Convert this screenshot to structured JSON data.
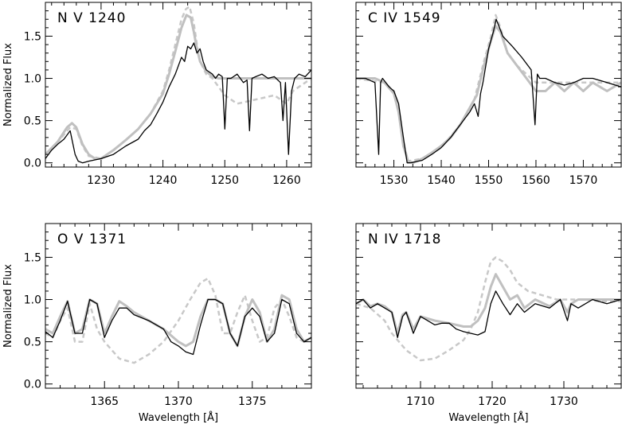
{
  "chart_data": [
    {
      "type": "line",
      "title": "N V 1240",
      "xlabel": "",
      "ylabel": "Normalized Flux",
      "xlim": [
        1221,
        1264
      ],
      "ylim": [
        -0.05,
        1.9
      ],
      "xticks": [
        1230,
        1240,
        1250,
        1260
      ],
      "yticks": [
        0.0,
        0.5,
        1.0,
        1.5
      ],
      "series": [
        {
          "style": "solid-black",
          "color": "#000000",
          "x": [
            1221,
            1222,
            1223,
            1224,
            1225,
            1225.8,
            1226.3,
            1227,
            1228,
            1230,
            1232,
            1234,
            1236,
            1237,
            1238,
            1239,
            1240,
            1241,
            1242,
            1243,
            1243.5,
            1244,
            1244.5,
            1245,
            1245.5,
            1246,
            1246.5,
            1247,
            1248,
            1248.5,
            1249,
            1249.6,
            1250,
            1250.4,
            1251,
            1252,
            1253,
            1253.6,
            1254,
            1254.4,
            1255,
            1256,
            1257,
            1258,
            1259,
            1259.4,
            1259.8,
            1260.3,
            1260.8,
            1261.3,
            1262,
            1263,
            1264
          ],
          "y": [
            0.05,
            0.15,
            0.22,
            0.28,
            0.38,
            0.1,
            0.02,
            0.0,
            0.02,
            0.05,
            0.1,
            0.2,
            0.28,
            0.38,
            0.45,
            0.58,
            0.72,
            0.9,
            1.05,
            1.25,
            1.2,
            1.38,
            1.35,
            1.42,
            1.3,
            1.35,
            1.2,
            1.1,
            1.05,
            1.0,
            1.05,
            1.02,
            0.4,
            1.0,
            1.0,
            1.05,
            0.95,
            0.98,
            0.38,
            1.0,
            1.02,
            1.05,
            1.0,
            1.02,
            0.95,
            0.5,
            0.95,
            0.1,
            0.85,
            1.0,
            1.05,
            1.02,
            1.1
          ]
        },
        {
          "style": "solid-gray",
          "color": "#c0c0c0",
          "x": [
            1221,
            1223,
            1224.5,
            1225.3,
            1226,
            1227,
            1228,
            1229,
            1230,
            1232,
            1234,
            1236,
            1238,
            1240,
            1241,
            1242,
            1243,
            1243.8,
            1244.5,
            1245,
            1245.5,
            1246,
            1247,
            1248,
            1249,
            1250,
            1252,
            1255,
            1258,
            1261,
            1264
          ],
          "y": [
            0.1,
            0.25,
            0.42,
            0.47,
            0.42,
            0.22,
            0.1,
            0.05,
            0.05,
            0.15,
            0.27,
            0.4,
            0.58,
            0.82,
            1.05,
            1.32,
            1.6,
            1.75,
            1.72,
            1.55,
            1.35,
            1.2,
            1.08,
            1.02,
            1.0,
            1.0,
            1.0,
            1.0,
            1.0,
            1.0,
            1.0
          ]
        },
        {
          "style": "dashed-gray",
          "color": "#c8c8c8",
          "x": [
            1221,
            1223,
            1225,
            1226,
            1227,
            1228,
            1230,
            1232,
            1234,
            1236,
            1238,
            1240,
            1241,
            1242,
            1243,
            1243.7,
            1244.3,
            1245,
            1245.5,
            1246,
            1247,
            1248,
            1249,
            1250,
            1252,
            1255,
            1258,
            1259,
            1260,
            1261,
            1264
          ],
          "y": [
            0.1,
            0.25,
            0.42,
            0.4,
            0.2,
            0.08,
            0.05,
            0.15,
            0.27,
            0.4,
            0.58,
            0.85,
            1.1,
            1.4,
            1.7,
            1.82,
            1.85,
            1.65,
            1.4,
            1.2,
            1.05,
            1.0,
            0.9,
            0.8,
            0.7,
            0.75,
            0.8,
            0.75,
            0.7,
            0.85,
            1.0
          ]
        }
      ]
    },
    {
      "type": "line",
      "title": "C IV 1549",
      "xlabel": "",
      "ylabel": "",
      "xlim": [
        1522,
        1578
      ],
      "ylim": [
        -0.05,
        1.9
      ],
      "xticks": [
        1530,
        1540,
        1550,
        1560,
        1570
      ],
      "yticks": [],
      "series": [
        {
          "style": "solid-black",
          "color": "#000000",
          "x": [
            1522,
            1524,
            1526,
            1526.8,
            1527.2,
            1527.6,
            1529,
            1530,
            1531,
            1532,
            1532.8,
            1533.5,
            1536,
            1538,
            1540,
            1542,
            1544,
            1546,
            1547,
            1547.8,
            1548.3,
            1548.8,
            1550,
            1551,
            1551.6,
            1552.3,
            1553,
            1555,
            1557,
            1559,
            1559.8,
            1560.3,
            1560.8,
            1562,
            1564,
            1566,
            1568,
            1570,
            1572,
            1575,
            1578
          ],
          "y": [
            1.0,
            1.0,
            0.95,
            0.1,
            0.95,
            1.0,
            0.9,
            0.85,
            0.7,
            0.3,
            0.0,
            0.0,
            0.03,
            0.1,
            0.18,
            0.3,
            0.45,
            0.6,
            0.7,
            0.55,
            0.82,
            0.95,
            1.35,
            1.55,
            1.7,
            1.6,
            1.5,
            1.38,
            1.25,
            1.1,
            0.45,
            1.05,
            1.0,
            1.0,
            0.95,
            0.92,
            0.95,
            1.0,
            1.0,
            0.95,
            0.9
          ]
        },
        {
          "style": "solid-gray",
          "color": "#c0c0c0",
          "x": [
            1522,
            1524,
            1526,
            1528,
            1530,
            1531,
            1532,
            1533,
            1534,
            1536,
            1538,
            1540,
            1542,
            1544,
            1546,
            1547.5,
            1549,
            1550.5,
            1551.5,
            1552.5,
            1554,
            1556,
            1558,
            1560,
            1562,
            1564,
            1566,
            1568,
            1570,
            1572,
            1575,
            1578
          ],
          "y": [
            1.0,
            1.0,
            1.0,
            0.95,
            0.82,
            0.6,
            0.2,
            0.02,
            0.0,
            0.05,
            0.12,
            0.2,
            0.3,
            0.45,
            0.65,
            0.8,
            1.15,
            1.45,
            1.62,
            1.55,
            1.3,
            1.15,
            1.0,
            0.85,
            0.85,
            0.95,
            0.85,
            0.95,
            0.85,
            0.95,
            0.85,
            0.95
          ]
        },
        {
          "style": "dashed-gray",
          "color": "#c8c8c8",
          "x": [
            1522,
            1528,
            1530,
            1531,
            1532,
            1533,
            1536,
            1540,
            1544,
            1547,
            1549,
            1550.5,
            1551.5,
            1552.5,
            1554,
            1556,
            1560,
            1565,
            1570,
            1578
          ],
          "y": [
            1.0,
            0.95,
            0.85,
            0.6,
            0.25,
            0.02,
            0.05,
            0.18,
            0.45,
            0.75,
            1.2,
            1.5,
            1.75,
            1.6,
            1.3,
            1.15,
            0.95,
            0.95,
            0.95,
            0.95
          ]
        }
      ]
    },
    {
      "type": "line",
      "title": "O V 1371",
      "xlabel": "Wavelength [Å]",
      "ylabel": "Normalized Flux",
      "xlim": [
        1361,
        1379
      ],
      "ylim": [
        -0.05,
        1.9
      ],
      "xticks": [
        1365,
        1370,
        1375
      ],
      "yticks": [
        0.0,
        0.5,
        1.0,
        1.5
      ],
      "series": [
        {
          "style": "solid-black",
          "color": "#000000",
          "x": [
            1361,
            1361.5,
            1362,
            1362.5,
            1363,
            1363.5,
            1364,
            1364.5,
            1365,
            1365.5,
            1366,
            1366.5,
            1367,
            1368,
            1369,
            1369.5,
            1370,
            1370.5,
            1371,
            1371.5,
            1372,
            1372.5,
            1373,
            1373.5,
            1374,
            1374.5,
            1375,
            1375.5,
            1376,
            1376.5,
            1377,
            1377.5,
            1378,
            1378.5,
            1379
          ],
          "y": [
            0.62,
            0.55,
            0.75,
            0.98,
            0.6,
            0.6,
            1.0,
            0.95,
            0.55,
            0.75,
            0.9,
            0.9,
            0.82,
            0.75,
            0.65,
            0.5,
            0.45,
            0.38,
            0.35,
            0.7,
            1.0,
            1.0,
            0.95,
            0.6,
            0.45,
            0.8,
            0.9,
            0.8,
            0.5,
            0.6,
            1.0,
            0.95,
            0.6,
            0.5,
            0.55
          ]
        },
        {
          "style": "solid-gray",
          "color": "#c0c0c0",
          "x": [
            1361,
            1361.5,
            1362,
            1362.5,
            1363,
            1363.5,
            1364,
            1364.5,
            1365,
            1365.5,
            1366,
            1366.5,
            1367,
            1368,
            1369,
            1370,
            1370.5,
            1371,
            1371.5,
            1372,
            1372.5,
            1373,
            1373.5,
            1374,
            1374.5,
            1375,
            1375.5,
            1376,
            1376.5,
            1377,
            1377.5,
            1378,
            1378.5,
            1379
          ],
          "y": [
            0.65,
            0.6,
            0.8,
            0.98,
            0.6,
            0.65,
            1.0,
            0.95,
            0.6,
            0.8,
            0.98,
            0.92,
            0.85,
            0.75,
            0.65,
            0.5,
            0.45,
            0.5,
            0.8,
            1.0,
            1.0,
            0.95,
            0.6,
            0.45,
            0.8,
            1.0,
            0.85,
            0.5,
            0.65,
            1.05,
            1.0,
            0.65,
            0.5,
            0.55
          ]
        },
        {
          "style": "dashed-gray",
          "color": "#c8c8c8",
          "x": [
            1361,
            1361.5,
            1362,
            1362.5,
            1363,
            1363.5,
            1364,
            1364.5,
            1365,
            1366,
            1367,
            1368,
            1369,
            1370,
            1370.8,
            1371.5,
            1372,
            1372.5,
            1373,
            1373.5,
            1374,
            1374.5,
            1375,
            1375.5,
            1376,
            1376.5,
            1377,
            1377.5,
            1378,
            1378.5,
            1379
          ],
          "y": [
            0.6,
            0.55,
            0.75,
            0.9,
            0.5,
            0.5,
            0.95,
            0.65,
            0.5,
            0.3,
            0.25,
            0.35,
            0.5,
            0.75,
            1.0,
            1.2,
            1.25,
            1.05,
            0.6,
            0.6,
            0.85,
            1.05,
            0.75,
            0.5,
            0.55,
            0.9,
            1.0,
            0.8,
            0.55,
            0.5,
            0.55
          ]
        }
      ]
    },
    {
      "type": "line",
      "title": "N IV 1718",
      "xlabel": "Wavelength [Å]",
      "ylabel": "",
      "xlim": [
        1701,
        1738
      ],
      "ylim": [
        -0.05,
        1.9
      ],
      "xticks": [
        1710,
        1720,
        1730
      ],
      "yticks": [],
      "series": [
        {
          "style": "solid-black",
          "color": "#000000",
          "x": [
            1701,
            1702,
            1703,
            1704,
            1705,
            1706,
            1706.8,
            1707.5,
            1708,
            1709,
            1710,
            1711,
            1712,
            1713,
            1714,
            1715,
            1716,
            1717,
            1718,
            1719,
            1719.8,
            1720.5,
            1721.5,
            1722.5,
            1723.5,
            1724.5,
            1726,
            1728,
            1729.5,
            1730.5,
            1731,
            1732,
            1734,
            1736,
            1738
          ],
          "y": [
            0.95,
            1.0,
            0.9,
            0.95,
            0.9,
            0.85,
            0.55,
            0.8,
            0.85,
            0.6,
            0.8,
            0.75,
            0.7,
            0.72,
            0.72,
            0.65,
            0.62,
            0.6,
            0.58,
            0.62,
            0.95,
            1.1,
            0.95,
            0.82,
            0.95,
            0.85,
            0.95,
            0.9,
            1.0,
            0.75,
            0.95,
            0.9,
            1.0,
            0.95,
            1.0
          ]
        },
        {
          "style": "solid-gray",
          "color": "#c0c0c0",
          "x": [
            1701,
            1702,
            1703,
            1704,
            1705,
            1706,
            1706.8,
            1707.5,
            1708,
            1709,
            1710,
            1712,
            1714,
            1716,
            1717,
            1718,
            1719,
            1719.8,
            1720.5,
            1721.5,
            1722.5,
            1723.5,
            1724.5,
            1726,
            1728,
            1729.5,
            1730.5,
            1731,
            1732,
            1734,
            1736,
            1738
          ],
          "y": [
            0.95,
            1.0,
            0.92,
            0.95,
            0.92,
            0.85,
            0.6,
            0.82,
            0.85,
            0.65,
            0.8,
            0.75,
            0.72,
            0.68,
            0.68,
            0.75,
            0.9,
            1.15,
            1.3,
            1.15,
            1.0,
            1.05,
            0.9,
            1.0,
            0.92,
            1.0,
            0.85,
            0.95,
            1.0,
            1.0,
            1.0,
            1.0
          ]
        },
        {
          "style": "dashed-gray",
          "color": "#c8c8c8",
          "x": [
            1701,
            1703,
            1705,
            1706,
            1708,
            1710,
            1712,
            1714,
            1716,
            1717,
            1718,
            1719,
            1719.8,
            1720.5,
            1721.5,
            1722.5,
            1723.5,
            1725,
            1727,
            1729,
            1731,
            1733,
            1735,
            1738
          ],
          "y": [
            0.95,
            0.9,
            0.75,
            0.6,
            0.4,
            0.28,
            0.3,
            0.4,
            0.52,
            0.65,
            0.85,
            1.2,
            1.45,
            1.5,
            1.45,
            1.35,
            1.2,
            1.1,
            1.05,
            1.0,
            1.0,
            1.0,
            0.98,
            0.98
          ]
        }
      ]
    }
  ]
}
